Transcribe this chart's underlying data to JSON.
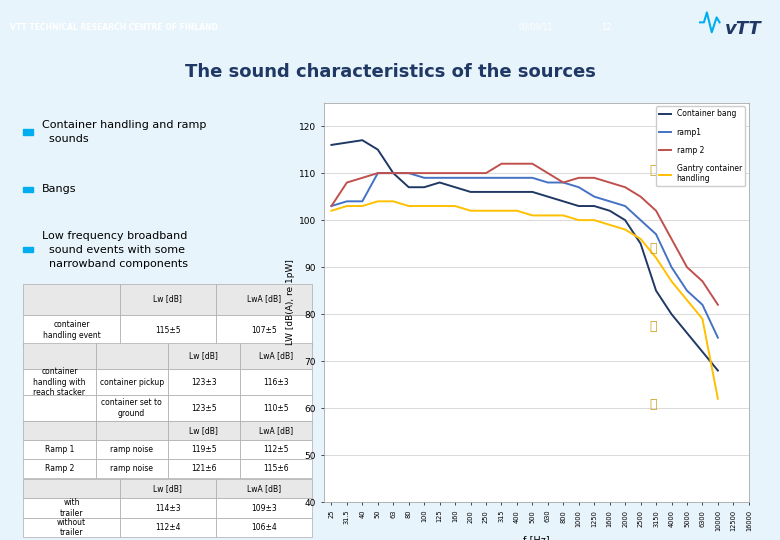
{
  "title": "The sound characteristics of the sources",
  "header_bg": "#00AEEF",
  "header_text": "VTT TECHNICAL RESEARCH CENTRE OF FINLAND",
  "header_date": "09/09/11",
  "header_page": "12",
  "slide_bg": "#E8F4FB",
  "title_color": "#1F3864",
  "bullet_color": "#00AEEF",
  "bullets": [
    "Container handling and ramp\n  sounds",
    "Bangs",
    "Low frequency broadband\n  sound events with some\n  narrowband components"
  ],
  "freq_labels": [
    "25",
    "31.5",
    "40",
    "50",
    "63",
    "80",
    "100",
    "125",
    "160",
    "200",
    "250",
    "315",
    "400",
    "500",
    "630",
    "800",
    "1000",
    "1250",
    "1600",
    "2000",
    "2500",
    "3150",
    "4000",
    "5000",
    "6300",
    "10000",
    "12500",
    "16000"
  ],
  "container_bang": [
    116,
    116.5,
    117,
    115,
    110,
    107,
    107,
    108,
    107,
    106,
    106,
    106,
    106,
    106,
    105,
    104,
    103,
    103,
    102,
    100,
    95,
    85,
    80,
    76,
    72,
    68,
    null,
    null
  ],
  "ramp1": [
    103,
    104,
    104,
    110,
    110,
    110,
    109,
    109,
    109,
    109,
    109,
    109,
    109,
    109,
    108,
    108,
    107,
    105,
    104,
    103,
    100,
    97,
    90,
    85,
    82,
    75,
    null,
    null
  ],
  "ramp2": [
    103,
    108,
    109,
    110,
    110,
    110,
    110,
    110,
    110,
    110,
    110,
    112,
    112,
    112,
    110,
    108,
    109,
    109,
    108,
    107,
    105,
    102,
    96,
    90,
    87,
    82,
    null,
    null
  ],
  "gantry": [
    102,
    103,
    103,
    104,
    104,
    103,
    103,
    103,
    103,
    102,
    102,
    102,
    102,
    101,
    101,
    101,
    100,
    100,
    99,
    98,
    96,
    92,
    87,
    83,
    79,
    62,
    null,
    null
  ],
  "line_colors": [
    "#1F3864",
    "#4472C4",
    "#C0504D",
    "#FFC000"
  ],
  "legend_labels": [
    "Container bang",
    "ramp1",
    "ramp 2",
    "Gantry container\nhandling"
  ],
  "ylabel": "LW [dB(A), re 1pW]",
  "xlabel": "f [Hz]",
  "ylim": [
    40,
    125
  ],
  "yticks": [
    40,
    50,
    60,
    70,
    80,
    90,
    100,
    110,
    120
  ]
}
